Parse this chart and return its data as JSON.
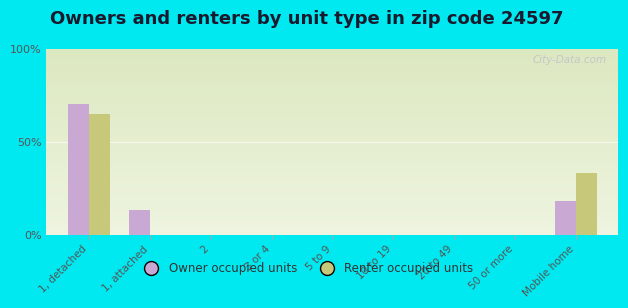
{
  "title": "Owners and renters by unit type in zip code 24597",
  "categories": [
    "1, detached",
    "1, attached",
    "2",
    "3 or 4",
    "5 to 9",
    "10 to 19",
    "20 to 49",
    "50 or more",
    "Mobile home"
  ],
  "owner_values": [
    70,
    13,
    0,
    0,
    0,
    0,
    0,
    0,
    18
  ],
  "renter_values": [
    65,
    0,
    0,
    0,
    0,
    0,
    0,
    0,
    33
  ],
  "owner_color": "#c9a8d4",
  "renter_color": "#c8c87a",
  "background_outer": "#00e8f0",
  "background_inner_top": "#eef4e0",
  "background_inner_bottom": "#dce8c0",
  "ylim": [
    0,
    100
  ],
  "yticks": [
    0,
    50,
    100
  ],
  "ytick_labels": [
    "0%",
    "50%",
    "100%"
  ],
  "bar_width": 0.35,
  "title_fontsize": 13,
  "legend_owner": "Owner occupied units",
  "legend_renter": "Renter occupied units",
  "watermark": "City-Data.com"
}
